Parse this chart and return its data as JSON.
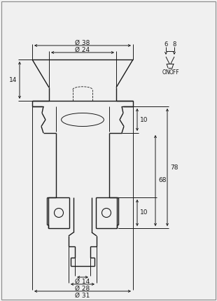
{
  "bg_color": "#f0f0f0",
  "line_color": "#1a1a1a",
  "dim_color": "#1a1a1a",
  "annotations": {
    "diam_38": "Ø 38",
    "diam_24": "Ø 24",
    "diam_14": "Ø 14",
    "diam_28": "Ø 28",
    "diam_31": "Ø 31",
    "dim_14": "14",
    "dim_10a": "10",
    "dim_10b": "10",
    "dim_68": "68",
    "dim_78": "78",
    "dim_6": "6",
    "dim_8": "8",
    "on_label": "ON",
    "off_label": "OFF"
  }
}
